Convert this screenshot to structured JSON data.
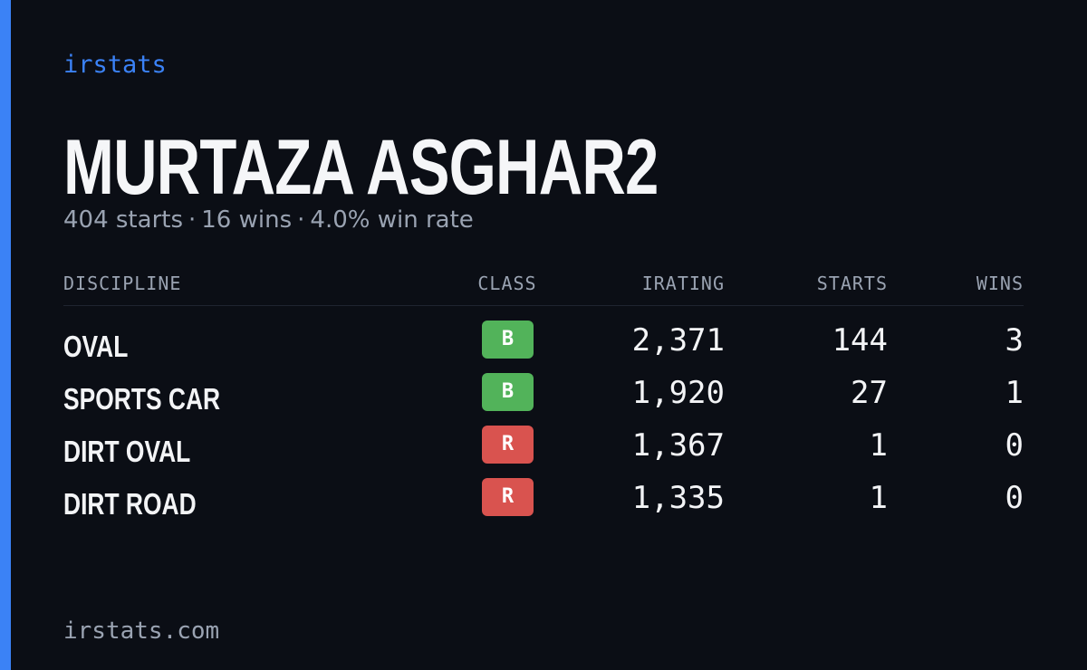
{
  "brand": "irstats",
  "profile": {
    "name": "MURTAZA ASGHAR2",
    "summary": [
      "404 starts",
      "16 wins",
      "4.0% win rate"
    ]
  },
  "table": {
    "headers": [
      "DISCIPLINE",
      "CLASS",
      "IRATING",
      "STARTS",
      "WINS"
    ],
    "rows": [
      [
        "OVAL",
        "B",
        "2,371",
        "144",
        "3"
      ],
      [
        "SPORTS CAR",
        "B",
        "1,920",
        "27",
        "1"
      ],
      [
        "DIRT OVAL",
        "R",
        "1,367",
        "1",
        "0"
      ],
      [
        "DIRT ROAD",
        "R",
        "1,335",
        "1",
        "0"
      ]
    ]
  },
  "footer": "irstats.com"
}
